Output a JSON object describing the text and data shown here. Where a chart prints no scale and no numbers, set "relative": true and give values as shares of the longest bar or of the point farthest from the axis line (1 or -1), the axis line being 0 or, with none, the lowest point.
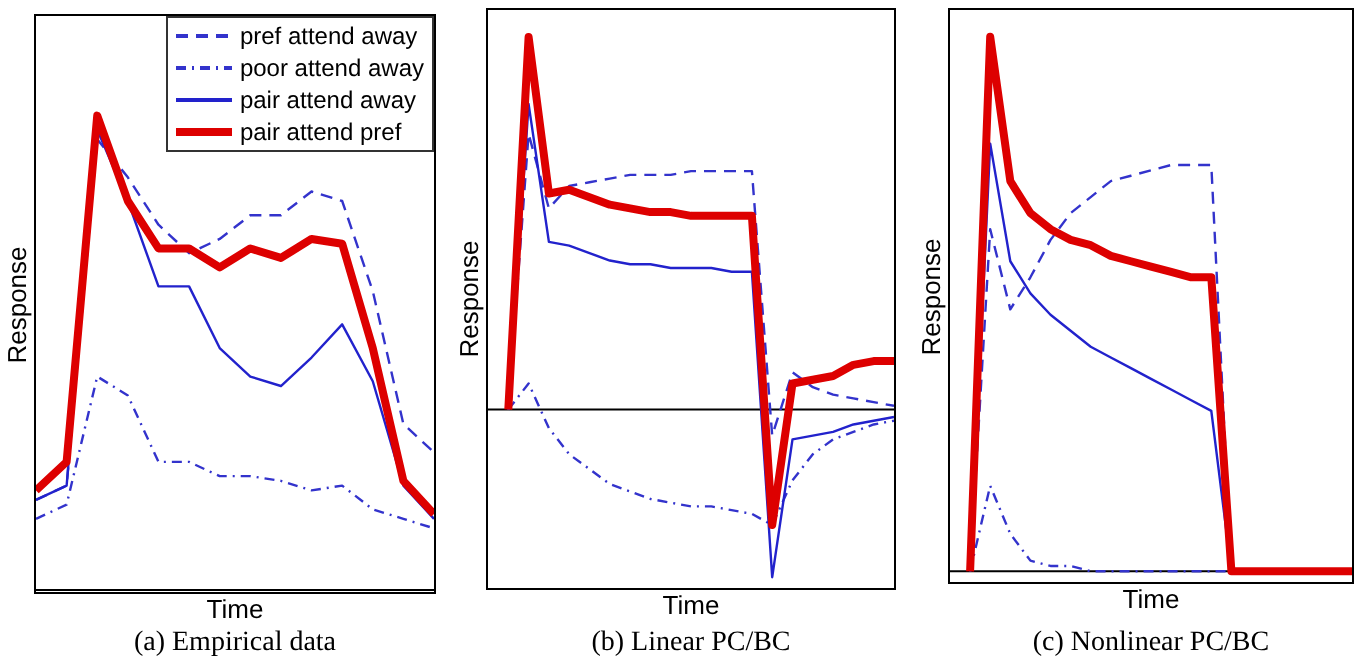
{
  "chart_data": [
    {
      "type": "line",
      "title": "(a) Empirical data",
      "xlabel": "Time",
      "ylabel": "Response",
      "relative": true,
      "legend": "top right",
      "categories": [
        null,
        null,
        null,
        null,
        null,
        null,
        null,
        null,
        null,
        null,
        null,
        null,
        null,
        null
      ],
      "series": [
        {
          "name": "pref attend away",
          "color": "#3333cc",
          "line_style": "dashed",
          "values": [
            0.19,
            0.22,
            0.95,
            0.87,
            0.77,
            0.71,
            0.74,
            0.79,
            0.79,
            0.84,
            0.82,
            0.63,
            0.35,
            0.29
          ]
        },
        {
          "name": "poor attend away",
          "color": "#3333cc",
          "line_style": "dotted",
          "values": [
            0.15,
            0.18,
            0.45,
            0.41,
            0.27,
            0.27,
            0.24,
            0.24,
            0.23,
            0.21,
            0.22,
            0.17,
            0.15,
            0.13
          ]
        },
        {
          "name": "pair attend away",
          "color": "#2222cc",
          "line_style": "solid",
          "values": [
            0.19,
            0.22,
            0.97,
            0.82,
            0.64,
            0.64,
            0.51,
            0.45,
            0.43,
            0.49,
            0.56,
            0.44,
            0.22,
            0.15
          ]
        },
        {
          "name": "pair attend pref",
          "color": "#dd0000",
          "line_style": "solid",
          "values": [
            0.21,
            0.27,
            1,
            0.82,
            0.72,
            0.72,
            0.68,
            0.72,
            0.7,
            0.74,
            0.73,
            0.51,
            0.23,
            0.16
          ]
        }
      ]
    },
    {
      "type": "line",
      "title": "(b) Linear PC/BC",
      "xlabel": "Time",
      "ylabel": "Response",
      "relative": true,
      "categories": [
        null,
        null,
        null,
        null,
        null,
        null,
        null,
        null,
        null,
        null,
        null,
        null,
        null,
        null,
        null,
        null,
        null,
        null,
        null,
        null,
        null
      ],
      "ref_lines": [
        {
          "axis": "y",
          "value": 0,
          "color": "#000000"
        }
      ],
      "series": [
        {
          "color": "#3333cc",
          "line_style": "dashed",
          "values": [
            null,
            0,
            0.74,
            0.54,
            0.6,
            0.61,
            0.62,
            0.63,
            0.63,
            0.63,
            0.64,
            0.64,
            0.64,
            0.64,
            -0.07,
            0.1,
            0.06,
            0.04,
            0.03,
            0.02,
            0.01
          ]
        },
        {
          "color": "#3333cc",
          "line_style": "dotted",
          "values": [
            null,
            0,
            0.07,
            -0.05,
            -0.12,
            -0.16,
            -0.2,
            -0.22,
            -0.24,
            -0.25,
            -0.26,
            -0.26,
            -0.27,
            -0.28,
            -0.31,
            -0.19,
            -0.12,
            -0.08,
            -0.06,
            -0.04,
            -0.03
          ]
        },
        {
          "color": "#2222cc",
          "line_style": "solid",
          "values": [
            null,
            0,
            0.82,
            0.45,
            0.44,
            0.42,
            0.4,
            0.39,
            0.39,
            0.38,
            0.38,
            0.38,
            0.37,
            0.37,
            -0.45,
            -0.08,
            -0.07,
            -0.06,
            -0.04,
            -0.03,
            -0.02
          ]
        },
        {
          "color": "#dd0000",
          "line_style": "solid",
          "values": [
            null,
            0,
            1,
            0.58,
            0.59,
            0.57,
            0.55,
            0.54,
            0.53,
            0.53,
            0.52,
            0.52,
            0.52,
            0.52,
            -0.31,
            0.07,
            0.08,
            0.09,
            0.12,
            0.13,
            0.13
          ]
        }
      ]
    },
    {
      "type": "line",
      "title": "(c) Nonlinear PC/BC",
      "xlabel": "Time",
      "ylabel": "Response",
      "relative": true,
      "categories": [
        null,
        null,
        null,
        null,
        null,
        null,
        null,
        null,
        null,
        null,
        null,
        null,
        null,
        null,
        null,
        null,
        null,
        null,
        null,
        null,
        null
      ],
      "ref_lines": [
        {
          "axis": "y",
          "value": 0,
          "color": "#000000"
        }
      ],
      "series": [
        {
          "color": "#3333cc",
          "line_style": "dashed",
          "values": [
            null,
            0,
            0.64,
            0.49,
            0.55,
            0.62,
            0.67,
            0.7,
            0.73,
            0.74,
            0.75,
            0.76,
            0.76,
            0.76,
            0,
            null,
            null,
            null,
            null,
            null,
            null
          ]
        },
        {
          "color": "#3333cc",
          "line_style": "dotted",
          "values": [
            null,
            0,
            0.16,
            0.07,
            0.02,
            0.01,
            0.01,
            0,
            0,
            0,
            0,
            0,
            0,
            0,
            0,
            null,
            null,
            null,
            null,
            null,
            null
          ]
        },
        {
          "color": "#2222cc",
          "line_style": "solid",
          "values": [
            null,
            0,
            0.8,
            0.58,
            0.52,
            0.48,
            0.45,
            0.42,
            0.4,
            0.38,
            0.36,
            0.34,
            0.32,
            0.3,
            0,
            null,
            null,
            null,
            null,
            null,
            null
          ]
        },
        {
          "color": "#dd0000",
          "line_style": "solid",
          "values": [
            null,
            0,
            1,
            0.73,
            0.67,
            0.64,
            0.62,
            0.61,
            0.59,
            0.58,
            0.57,
            0.56,
            0.55,
            0.55,
            0,
            0,
            0,
            0,
            0,
            0,
            0
          ]
        }
      ]
    }
  ]
}
